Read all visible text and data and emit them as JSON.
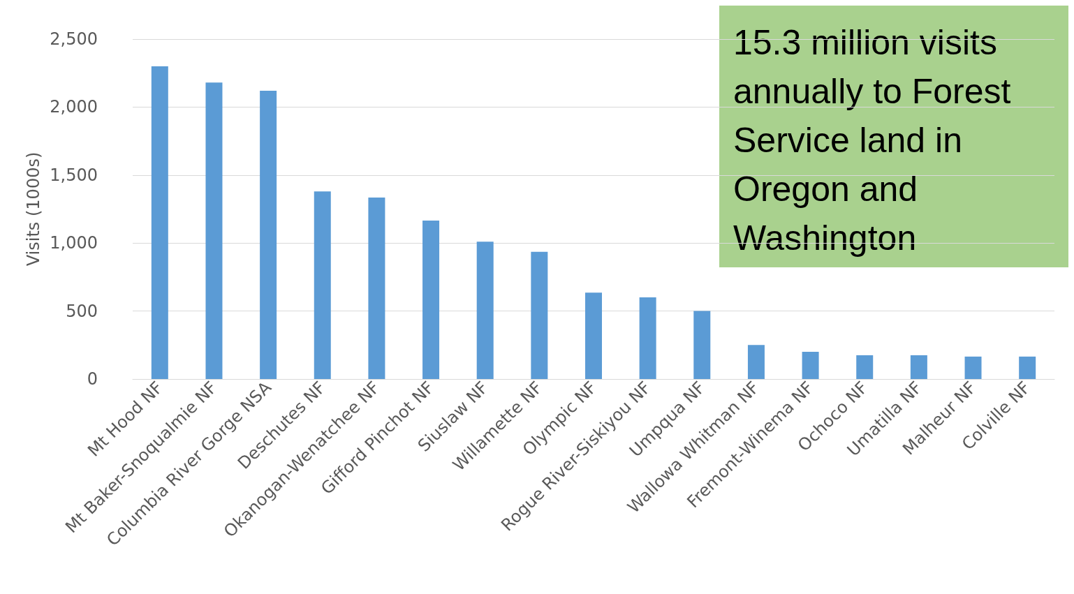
{
  "chart_data": {
    "type": "bar",
    "ylabel": "Visits (1000s)",
    "categories": [
      "Mt Hood NF",
      "Mt Baker-Snoqualmie NF",
      "Columbia River Gorge NSA",
      "Deschutes NF",
      "Okanogan-Wenatchee NF",
      "Gifford Pinchot NF",
      "Siuslaw NF",
      "Willamette NF",
      "Olympic NF",
      "Rogue River-Siskiyou NF",
      "Umpqua NF",
      "Wallowa Whitman NF",
      "Fremont-Winema NF",
      "Ochoco NF",
      "Umatilla NF",
      "Malheur NF",
      "Colville NF"
    ],
    "values": [
      2300,
      2180,
      2120,
      1380,
      1335,
      1165,
      1010,
      935,
      635,
      600,
      500,
      250,
      200,
      175,
      175,
      165,
      165
    ],
    "color": "#5b9bd5",
    "ylim": [
      0,
      2500
    ],
    "yticks": [
      0,
      {
        "value": 500,
        "label": "500"
      },
      {
        "value": 1000,
        "label": "1,000"
      },
      {
        "value": 1500,
        "label": "1,500"
      },
      {
        "value": 2000,
        "label": "2,000"
      },
      {
        "value": 2500,
        "label": "2,500"
      }
    ],
    "grid": "y",
    "annotations": [
      "15.3 million visits annually to Forest Service land in Oregon and Washington"
    ]
  }
}
